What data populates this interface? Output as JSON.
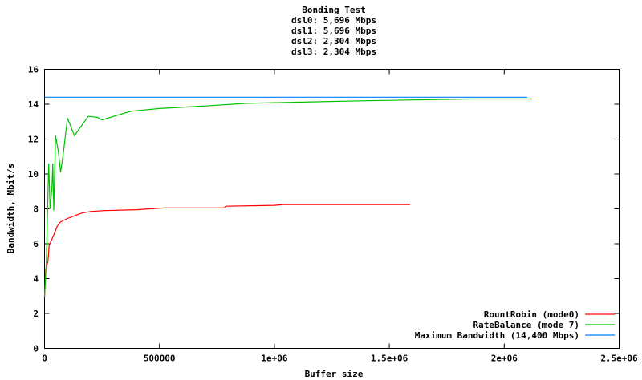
{
  "chart_data": {
    "type": "line",
    "title_lines": [
      "Bonding Test",
      "dsl0: 5,696 Mbps",
      "dsl1: 5,696 Mbps",
      "dsl2: 2,304 Mbps",
      "dsl3: 2,304 Mbps"
    ],
    "xlabel": "Buffer size",
    "ylabel": "Bandwidth, Mbit/s",
    "xlim": [
      0,
      2500000
    ],
    "ylim": [
      0,
      16
    ],
    "xticks": [
      0,
      500000,
      1000000,
      1500000,
      2000000,
      2500000
    ],
    "xtick_labels": [
      "0",
      "500000",
      "1e+06",
      "1.5e+06",
      "2e+06",
      "2.5e+06"
    ],
    "yticks": [
      0,
      2,
      4,
      6,
      8,
      10,
      12,
      14,
      16
    ],
    "ytick_labels": [
      "0",
      "2",
      "4",
      "6",
      "8",
      "10",
      "12",
      "14",
      "16"
    ],
    "grid": false,
    "legend_position": "bottom-right",
    "series": [
      {
        "name": "RountRobin (mode0)",
        "color": "#ff0000",
        "x": [
          0,
          5000,
          15000,
          20000,
          30000,
          40000,
          55000,
          70000,
          100000,
          130000,
          160000,
          200000,
          260000,
          400000,
          520000,
          780000,
          790000,
          1000000,
          1040000,
          1590000
        ],
        "y": [
          2.9,
          4.5,
          5.0,
          5.9,
          6.2,
          6.5,
          7.0,
          7.25,
          7.45,
          7.6,
          7.75,
          7.85,
          7.9,
          7.95,
          8.05,
          8.05,
          8.15,
          8.2,
          8.25,
          8.25
        ]
      },
      {
        "name": "RateBalance (mode 7)",
        "color": "#00c000",
        "x": [
          0,
          8000,
          12000,
          18000,
          24000,
          32000,
          36000,
          40000,
          48000,
          60000,
          70000,
          80000,
          100000,
          130000,
          190000,
          230000,
          250000,
          350000,
          380000,
          500000,
          700000,
          880000,
          1050000,
          1400000,
          1850000,
          2120000
        ],
        "y": [
          3.0,
          5.0,
          7.2,
          10.6,
          8.0,
          9.2,
          10.6,
          7.9,
          12.2,
          11.3,
          10.1,
          11.0,
          13.2,
          12.2,
          13.3,
          13.25,
          13.1,
          13.5,
          13.6,
          13.75,
          13.9,
          14.05,
          14.1,
          14.2,
          14.3,
          14.3
        ]
      },
      {
        "name": "Maximum Bandwidth (14,400 Mbps)",
        "color": "#0080ff",
        "x": [
          0,
          2100000
        ],
        "y": [
          14.4,
          14.4
        ]
      }
    ]
  }
}
